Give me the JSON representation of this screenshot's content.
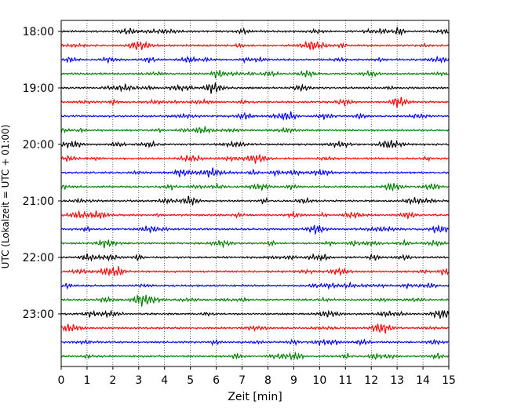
{
  "chart_data": {
    "type": "line",
    "title": "",
    "xlabel": "Zeit  [min]",
    "ylabel": "UTC (Lokalzeit = UTC + 01:00)",
    "xlim": [
      0,
      15
    ],
    "x_ticks": [
      0,
      1,
      2,
      3,
      4,
      5,
      6,
      7,
      8,
      9,
      10,
      11,
      12,
      13,
      14,
      15
    ],
    "y_tick_labels": [
      "18:00",
      "19:00",
      "20:00",
      "21:00",
      "22:00",
      "23:00"
    ],
    "trace_start_times": [
      "18:00",
      "18:15",
      "18:30",
      "18:45",
      "19:00",
      "19:15",
      "19:30",
      "19:45",
      "20:00",
      "20:15",
      "20:30",
      "20:45",
      "21:00",
      "21:15",
      "21:30",
      "21:45",
      "22:00",
      "22:15",
      "22:30",
      "22:45",
      "23:00",
      "23:15",
      "23:30",
      "23:45"
    ],
    "trace_colors": [
      "#000000",
      "#ff0000",
      "#0000ff",
      "#007f00"
    ],
    "trace_minutes_per_line": 15,
    "grid": "vertical dotted lines at each minute",
    "legend": "none"
  }
}
